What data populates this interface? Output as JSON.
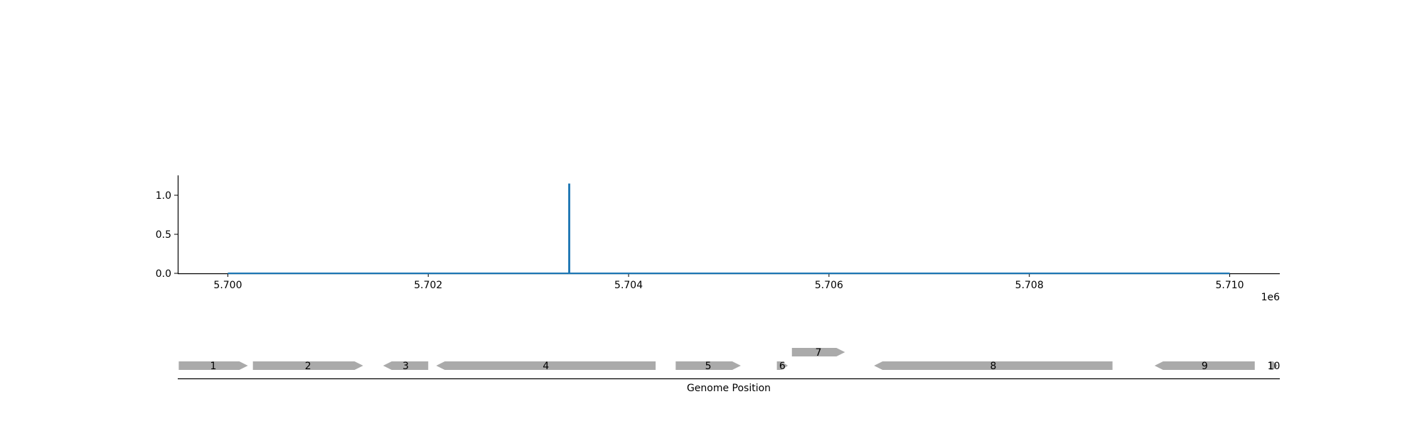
{
  "chart_data": [
    {
      "type": "line",
      "xlim": [
        5699500,
        5710500
      ],
      "ylim": [
        0,
        1.25
      ],
      "x_offset_label": "1e6",
      "x_ticks": [
        {
          "value": 5700000,
          "label": "5.700"
        },
        {
          "value": 5702000,
          "label": "5.702"
        },
        {
          "value": 5704000,
          "label": "5.704"
        },
        {
          "value": 5706000,
          "label": "5.706"
        },
        {
          "value": 5708000,
          "label": "5.708"
        },
        {
          "value": 5710000,
          "label": "5.710"
        }
      ],
      "y_ticks": [
        {
          "value": 0.0,
          "label": "0.0"
        },
        {
          "value": 0.5,
          "label": "0.5"
        },
        {
          "value": 1.0,
          "label": "1.0"
        }
      ],
      "series": [
        {
          "color": "#1f77b4",
          "x": [
            5700000,
            5703405,
            5703405,
            5703410,
            5703410,
            5710000
          ],
          "y": [
            0,
            0,
            1.14,
            1.14,
            0,
            0
          ]
        }
      ],
      "grid": false
    },
    {
      "type": "gene-track",
      "xlabel": "Genome Position",
      "xlim": [
        5699500,
        5710500
      ],
      "gene_color": "#aaaaaa",
      "genes": [
        {
          "label": "1",
          "start": 5699510,
          "end": 5700200,
          "strand": "+",
          "row": 0
        },
        {
          "label": "2",
          "start": 5700250,
          "end": 5701350,
          "strand": "+",
          "row": 0
        },
        {
          "label": "3",
          "start": 5701550,
          "end": 5702000,
          "strand": "-",
          "row": 0
        },
        {
          "label": "4",
          "start": 5702080,
          "end": 5704270,
          "strand": "-",
          "row": 0
        },
        {
          "label": "5",
          "start": 5704470,
          "end": 5705120,
          "strand": "+",
          "row": 0
        },
        {
          "label": "6",
          "start": 5705480,
          "end": 5705590,
          "strand": "+",
          "row": 0
        },
        {
          "label": "7",
          "start": 5705630,
          "end": 5706160,
          "strand": "+",
          "row": 1
        },
        {
          "label": "8",
          "start": 5706450,
          "end": 5708830,
          "strand": "-",
          "row": 0
        },
        {
          "label": "9",
          "start": 5709250,
          "end": 5710250,
          "strand": "-",
          "row": 0
        },
        {
          "label": "10",
          "start": 5710400,
          "end": 5710480,
          "strand": "+",
          "row": 0
        }
      ]
    }
  ]
}
